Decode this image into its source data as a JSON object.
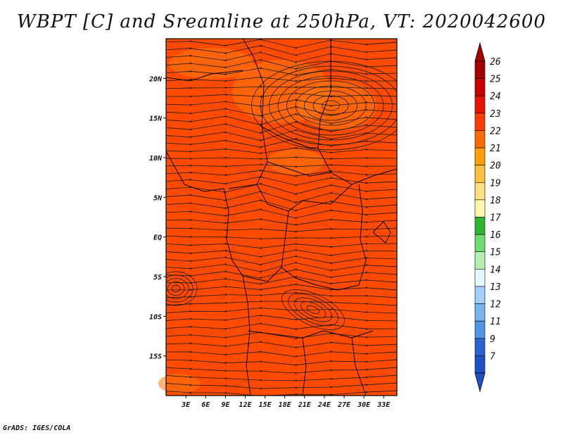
{
  "title": "WBPT [C] and Sreamline at 250hPa, VT: 2020042600",
  "footer": "GrADS: IGES/COLA",
  "map": {
    "lat_labels": [
      {
        "lat": 20,
        "label": "20N"
      },
      {
        "lat": 15,
        "label": "15N"
      },
      {
        "lat": 10,
        "label": "10N"
      },
      {
        "lat": 5,
        "label": "5N"
      },
      {
        "lat": 0,
        "label": "EQ"
      },
      {
        "lat": -5,
        "label": "5S"
      },
      {
        "lat": -10,
        "label": "10S"
      },
      {
        "lat": -15,
        "label": "15S"
      }
    ],
    "lon_labels": [
      {
        "lon": 3,
        "label": "3E"
      },
      {
        "lon": 6,
        "label": "6E"
      },
      {
        "lon": 9,
        "label": "9E"
      },
      {
        "lon": 12,
        "label": "12E"
      },
      {
        "lon": 15,
        "label": "15E"
      },
      {
        "lon": 18,
        "label": "18E"
      },
      {
        "lon": 21,
        "label": "21E"
      },
      {
        "lon": 24,
        "label": "24E"
      },
      {
        "lon": 27,
        "label": "27E"
      },
      {
        "lon": 30,
        "label": "30E"
      },
      {
        "lon": 33,
        "label": "33E"
      }
    ],
    "lon_range": [
      0,
      35
    ],
    "lat_range": [
      -20,
      25
    ],
    "fill_color": "#ff4a00",
    "warm_patch_color": "#ff7a10",
    "streamline_color": "#1a1a1a"
  },
  "colorbar": {
    "levels": [
      {
        "label": "26",
        "color": "#a50000"
      },
      {
        "label": "25",
        "color": "#c80000"
      },
      {
        "label": "24",
        "color": "#e61400"
      },
      {
        "label": "23",
        "color": "#ff3c00"
      },
      {
        "label": "22",
        "color": "#ff6a00"
      },
      {
        "label": "21",
        "color": "#ffa000"
      },
      {
        "label": "20",
        "color": "#ffc040"
      },
      {
        "label": "19",
        "color": "#ffe080"
      },
      {
        "label": "18",
        "color": "#fffaaa"
      },
      {
        "label": "17",
        "color": "#2eb82e"
      },
      {
        "label": "16",
        "color": "#6fdc6f"
      },
      {
        "label": "15",
        "color": "#b4f0b4"
      },
      {
        "label": "14",
        "color": "#e6f8ff"
      },
      {
        "label": "13",
        "color": "#a0d0ff"
      },
      {
        "label": "12",
        "color": "#78b4f0"
      },
      {
        "label": "11",
        "color": "#5096e6"
      },
      {
        "label": "9",
        "color": "#2864d2"
      },
      {
        "label": "7",
        "color": "#1e50c8"
      }
    ],
    "top_arrow_color": "#a50000",
    "bottom_arrow_color": "#1e50c8"
  }
}
